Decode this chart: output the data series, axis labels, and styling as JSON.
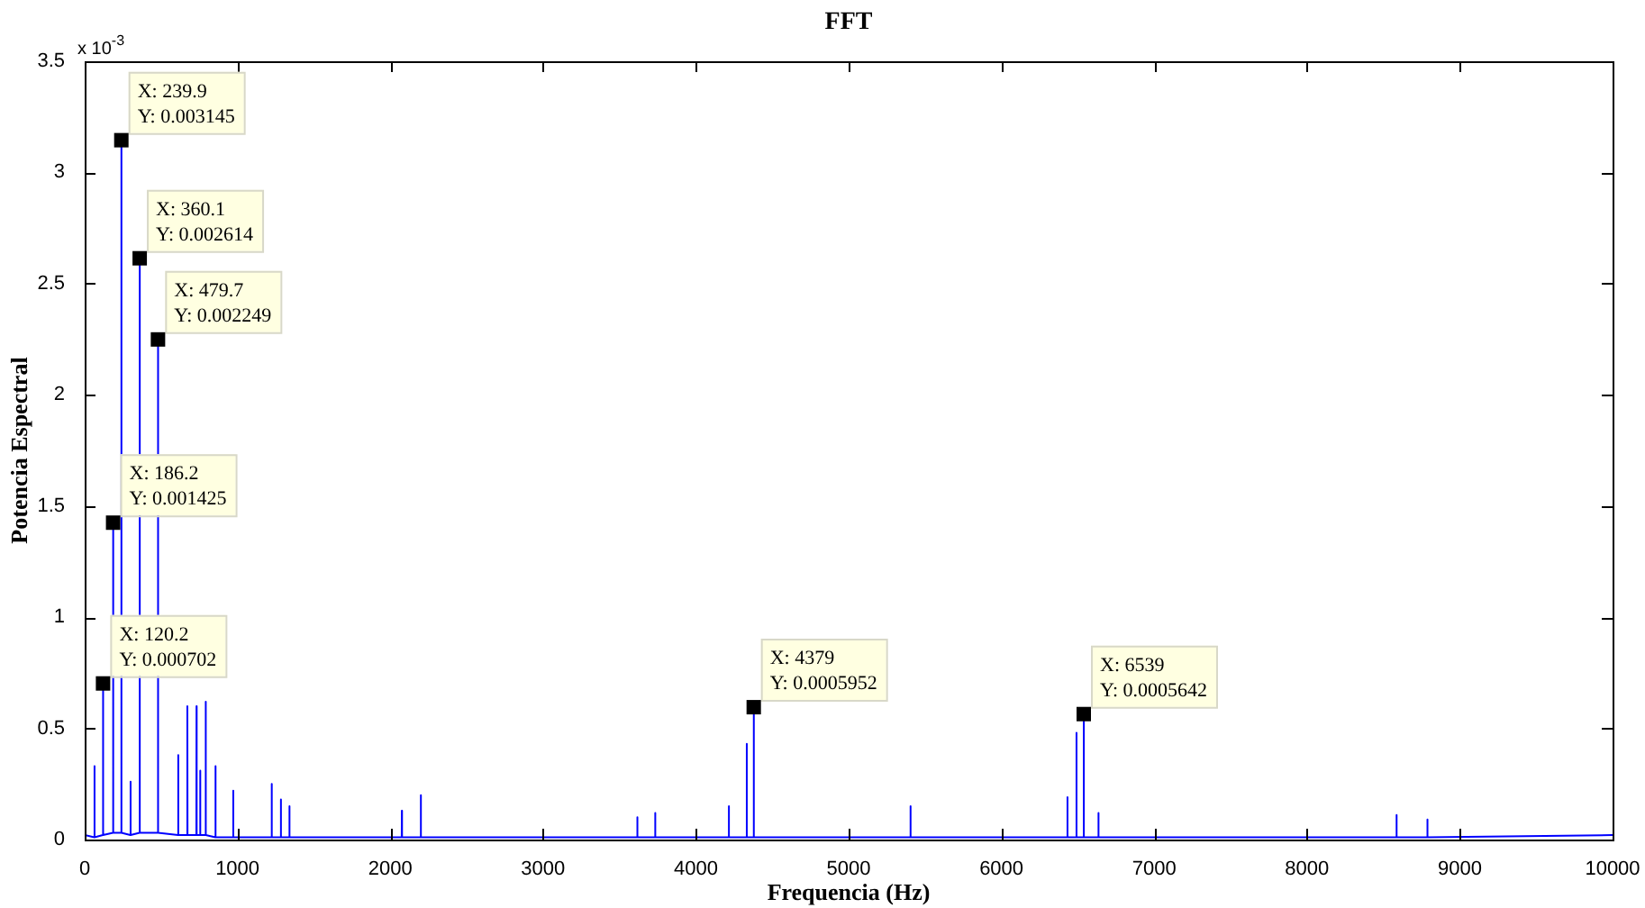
{
  "chart_data": {
    "type": "line",
    "title": "FFT",
    "xlabel": "Frequencia (Hz)",
    "ylabel": "Potencia Espectral",
    "x": [
      0,
      63,
      64,
      65,
      119,
      120.2,
      121,
      185,
      186.2,
      187,
      238,
      239.9,
      241,
      299,
      300,
      301,
      359,
      360.1,
      361,
      478,
      479.7,
      481,
      611,
      612,
      613,
      671,
      672,
      673,
      731,
      732,
      733,
      755,
      756,
      757,
      791,
      792,
      793,
      855,
      856,
      857,
      971,
      972,
      973,
      1223,
      1224,
      1225,
      1283,
      1284,
      1285,
      1339,
      1340,
      1341,
      2075,
      2076,
      2077,
      2199,
      2200,
      2201,
      3616,
      3617,
      3618,
      3733,
      3734,
      3735,
      4215,
      4216,
      4217,
      4332,
      4333,
      4334,
      4378,
      4379,
      4380,
      5404,
      5405,
      5406,
      6431,
      6432,
      6433,
      6490,
      6491,
      6492,
      6538,
      6539,
      6540,
      6634,
      6635,
      6636,
      8585,
      8586,
      8587,
      8787,
      8788,
      8789,
      10000
    ],
    "series": [
      {
        "color": "#0000ff",
        "values": [
          0.02,
          0.01,
          0.33,
          0.01,
          0.02,
          0.702,
          0.02,
          0.03,
          1.425,
          0.03,
          0.03,
          3.145,
          0.03,
          0.02,
          0.26,
          0.02,
          0.03,
          2.614,
          0.03,
          0.03,
          2.249,
          0.03,
          0.02,
          0.38,
          0.02,
          0.02,
          0.6,
          0.02,
          0.02,
          0.6,
          0.02,
          0.02,
          0.31,
          0.02,
          0.02,
          0.62,
          0.02,
          0.01,
          0.33,
          0.01,
          0.01,
          0.22,
          0.01,
          0.01,
          0.25,
          0.01,
          0.01,
          0.18,
          0.01,
          0.01,
          0.15,
          0.01,
          0.01,
          0.13,
          0.01,
          0.01,
          0.2,
          0.01,
          0.01,
          0.1,
          0.01,
          0.01,
          0.12,
          0.01,
          0.01,
          0.15,
          0.01,
          0.01,
          0.43,
          0.01,
          0.01,
          0.5952,
          0.01,
          0.01,
          0.15,
          0.01,
          0.01,
          0.19,
          0.01,
          0.01,
          0.48,
          0.01,
          0.01,
          0.5642,
          0.01,
          0.01,
          0.12,
          0.01,
          0.01,
          0.11,
          0.01,
          0.01,
          0.09,
          0.01,
          0.02
        ]
      }
    ],
    "xlim": [
      0,
      10000
    ],
    "xticks": [
      0,
      1000,
      2000,
      3000,
      4000,
      5000,
      6000,
      7000,
      8000,
      9000,
      10000
    ],
    "ylim": [
      0,
      3.5
    ],
    "yticks": [
      0,
      0.5,
      1,
      1.5,
      2,
      2.5,
      3,
      3.5
    ],
    "grid": false,
    "legend": false,
    "marker": "none",
    "line_style": "solid",
    "annotations": [
      "x 10$^{-3}$",
      {
        "text": "X: 239.9\nY: 0.003145",
        "x": 239.9,
        "y": 3.145
      },
      {
        "text": "X: 360.1\nY: 0.002614",
        "x": 360.1,
        "y": 2.614
      },
      {
        "text": "X: 479.7\nY: 0.002249",
        "x": 479.7,
        "y": 2.249
      },
      {
        "text": "X: 186.2\nY: 0.001425",
        "x": 186.2,
        "y": 1.425
      },
      {
        "text": "X: 120.2\nY: 0.000702",
        "x": 120.2,
        "y": 0.702
      },
      {
        "text": "X: 4379\nY: 0.0005952",
        "x": 4379,
        "y": 0.5952
      },
      {
        "text": "X: 6539\nY: 0.0005642",
        "x": 6539,
        "y": 0.5642
      }
    ]
  }
}
